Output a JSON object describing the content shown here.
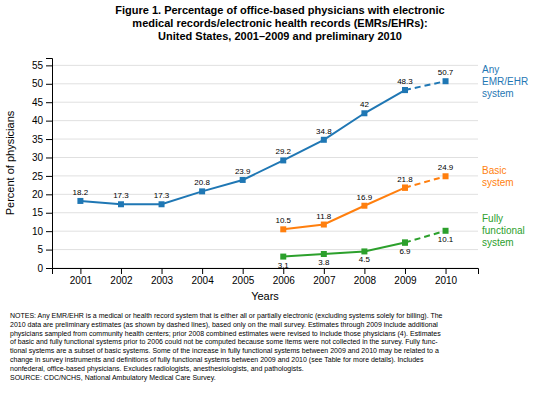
{
  "chart_data": {
    "type": "line",
    "title": "Figure 1. Percentage of office-based physicians with electronic\nmedical records/electronic health records (EMRs/EHRs):\nUnited States, 2001–2009 and preliminary 2010",
    "x_label": "Years",
    "y_label": "Percent of physicians",
    "x": [
      2001,
      2002,
      2003,
      2004,
      2005,
      2006,
      2007,
      2008,
      2009,
      2010
    ],
    "xlim": [
      2000.3,
      2010.8
    ],
    "xticks": [
      2001,
      2002,
      2003,
      2004,
      2005,
      2006,
      2007,
      2008,
      2009,
      2010
    ],
    "ylim": [
      0,
      57
    ],
    "yticks": [
      0,
      5,
      10,
      15,
      20,
      25,
      30,
      35,
      40,
      45,
      50,
      55
    ],
    "grid": true,
    "data_labels": true,
    "marker": "square",
    "series": [
      {
        "name": "Any\nEMR/EHR\nsystem",
        "line_style": "solid",
        "values": [
          18.2,
          17.3,
          17.3,
          20.8,
          23.9,
          29.2,
          34.8,
          42.0,
          48.3,
          null
        ]
      },
      {
        "line_style": "dashed",
        "values": [
          null,
          null,
          null,
          null,
          null,
          null,
          null,
          null,
          48.3,
          50.7
        ]
      },
      {
        "name": "Basic\nsystem",
        "line_style": "solid",
        "values": [
          null,
          null,
          null,
          null,
          null,
          10.5,
          11.8,
          16.9,
          21.8,
          null
        ]
      },
      {
        "line_style": "dashed",
        "values": [
          null,
          null,
          null,
          null,
          null,
          null,
          null,
          null,
          21.8,
          24.9
        ]
      },
      {
        "name": "Fully\nfunctional\nsystem",
        "line_style": "solid",
        "values": [
          null,
          null,
          null,
          null,
          null,
          3.1,
          3.8,
          4.5,
          6.9,
          null
        ]
      },
      {
        "line_style": "dashed",
        "values": [
          null,
          null,
          null,
          null,
          null,
          null,
          null,
          null,
          6.9,
          10.1
        ]
      }
    ],
    "notes": [
      "NOTES: Any EMR/EHR is a medical or health record system that is either all or partially electronic (excluding systems solely for billing). The",
      "2010 data are preliminary estimates (as shown by dashed lines), based only on the mail survey. Estimates through 2009 include additional",
      "physicians sampled from community health centers; prior 2008 combined estimates were revised to include those physicians (4). Estimates",
      "of basic and fully functional systems prior to 2006 could not be computed because some items were not collected in the survey. Fully func-",
      "tional systems are a subset of basic systems. Some of the increase in fully functional systems between 2009 and 2010 may be related to a",
      "change in survey instruments and definitions of fully functional systems between 2009 and 2010 (see Table for more details). Includes",
      "nonfederal, office-based physicians. Excludes radiologists, anesthesiologists, and pathologists.",
      "SOURCE: CDC/NCHS, National Ambulatory Medical Care Survey."
    ]
  }
}
